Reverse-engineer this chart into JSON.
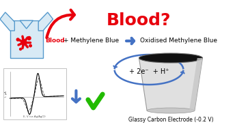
{
  "title": "Blood?",
  "title_color": "#e8000d",
  "title_fontsize": 18,
  "title_fontweight": "bold",
  "bg_color": "#ffffff",
  "blood_color": "#e8000d",
  "arrow_red_color": "#e8000d",
  "arrow_blue_color": "#4472c4",
  "cv_line_solid": "#000000",
  "cv_line_dashed": "#555555",
  "check_color": "#22bb00",
  "blue_arrow_color": "#4472c4",
  "electrode_body_color": "#e0e0e0",
  "electrode_top_color": "#111111",
  "shirt_color": "#d8eaf5",
  "shirt_outline": "#5599cc",
  "electron_text": "+ 2e⁻  + H⁺",
  "electrode_label": "Glassy Carbon Electrode (-0.2 V)"
}
